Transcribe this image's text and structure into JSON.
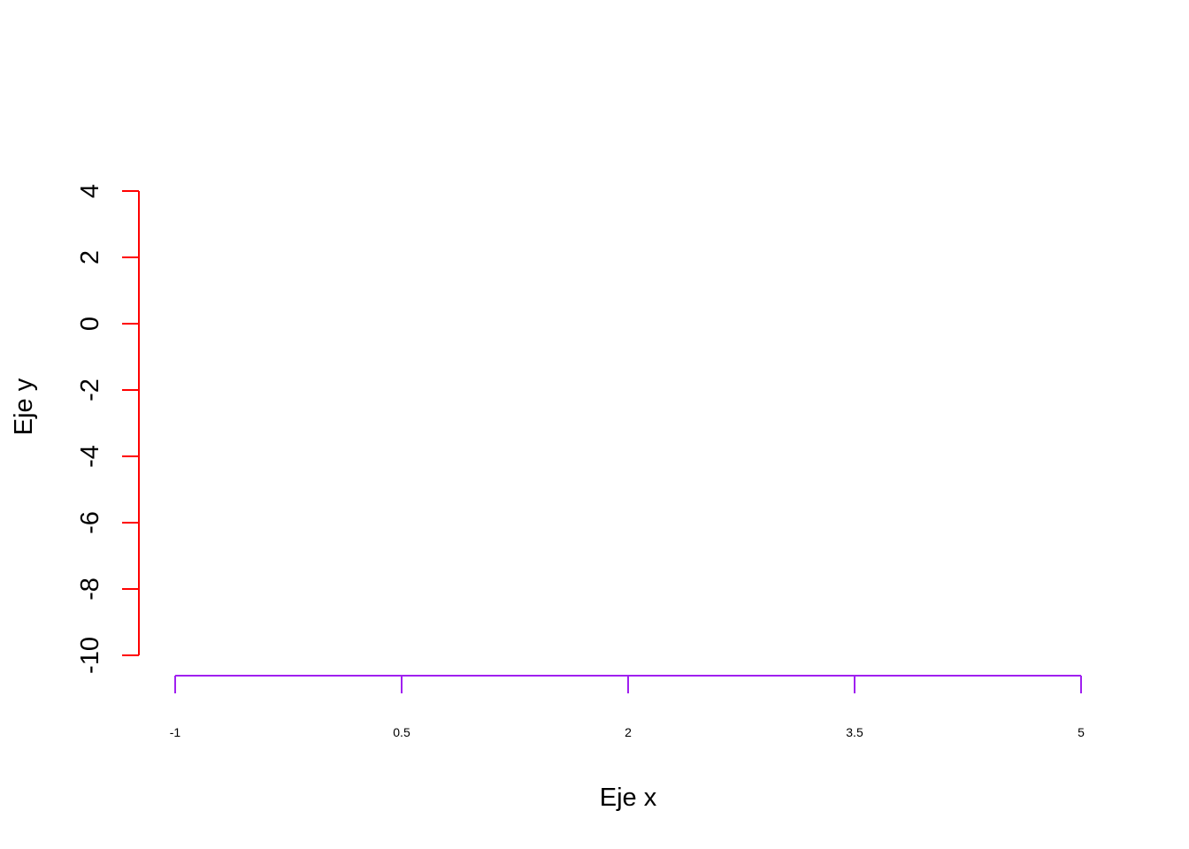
{
  "chart_data": {
    "type": "scatter",
    "title": "",
    "xlabel": "Eje x",
    "ylabel": "Eje y",
    "xlim": [
      -1,
      5
    ],
    "ylim": [
      -10,
      4
    ],
    "x_ticks": [
      -1,
      0.5,
      2,
      3.5,
      5
    ],
    "x_tick_labels": [
      "-1",
      "0.5",
      "2",
      "3.5",
      "5"
    ],
    "y_ticks": [
      4,
      2,
      0,
      -2,
      -4,
      -6,
      -8,
      -10
    ],
    "y_tick_labels": [
      "4",
      "2",
      "0",
      "-2",
      "-4",
      "-6",
      "-8",
      "-10"
    ],
    "series": [],
    "grid": false,
    "colors": {
      "x_axis": "#A020F0",
      "y_axis": "#FF0000",
      "text": "#000000"
    }
  }
}
